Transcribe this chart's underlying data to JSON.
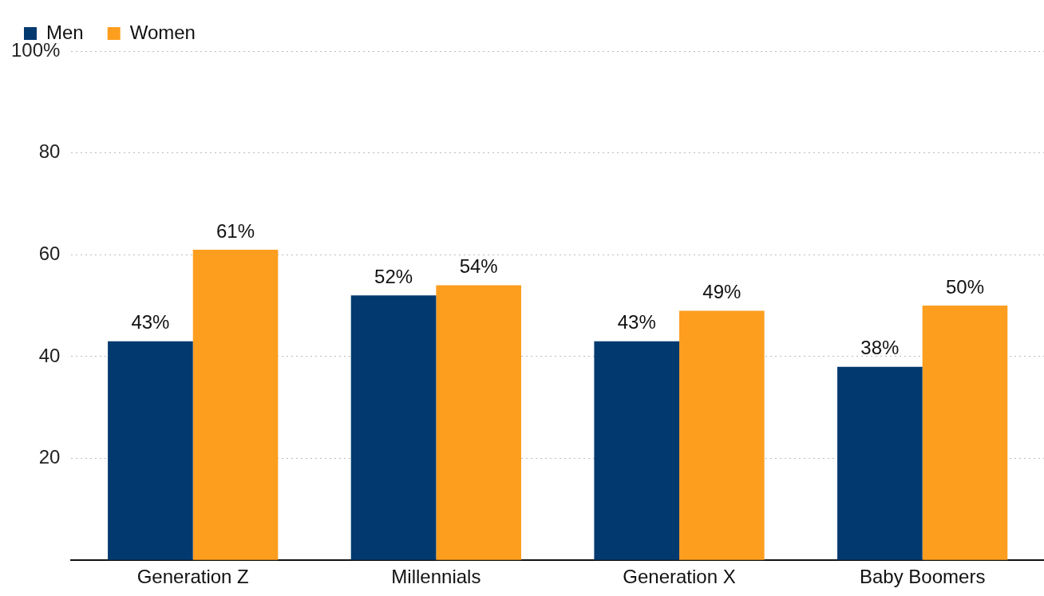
{
  "chart_data": {
    "type": "bar",
    "categories": [
      "Generation Z",
      "Millennials",
      "Generation X",
      "Baby Boomers"
    ],
    "series": [
      {
        "name": "Men",
        "color": "#023a70",
        "values": [
          43,
          52,
          43,
          38
        ],
        "value_labels": [
          "43%",
          "52%",
          "43%",
          "38%"
        ]
      },
      {
        "name": "Women",
        "color": "#fd9e1f",
        "values": [
          61,
          54,
          49,
          50
        ],
        "value_labels": [
          "61%",
          "54%",
          "49%",
          "50%"
        ]
      }
    ],
    "ylim": [
      0,
      100
    ],
    "yticks": [
      {
        "value": 0,
        "label": null
      },
      20,
      40,
      60,
      80,
      {
        "value": 100,
        "label": "100%"
      }
    ],
    "grid": "y",
    "legend": "top left"
  }
}
